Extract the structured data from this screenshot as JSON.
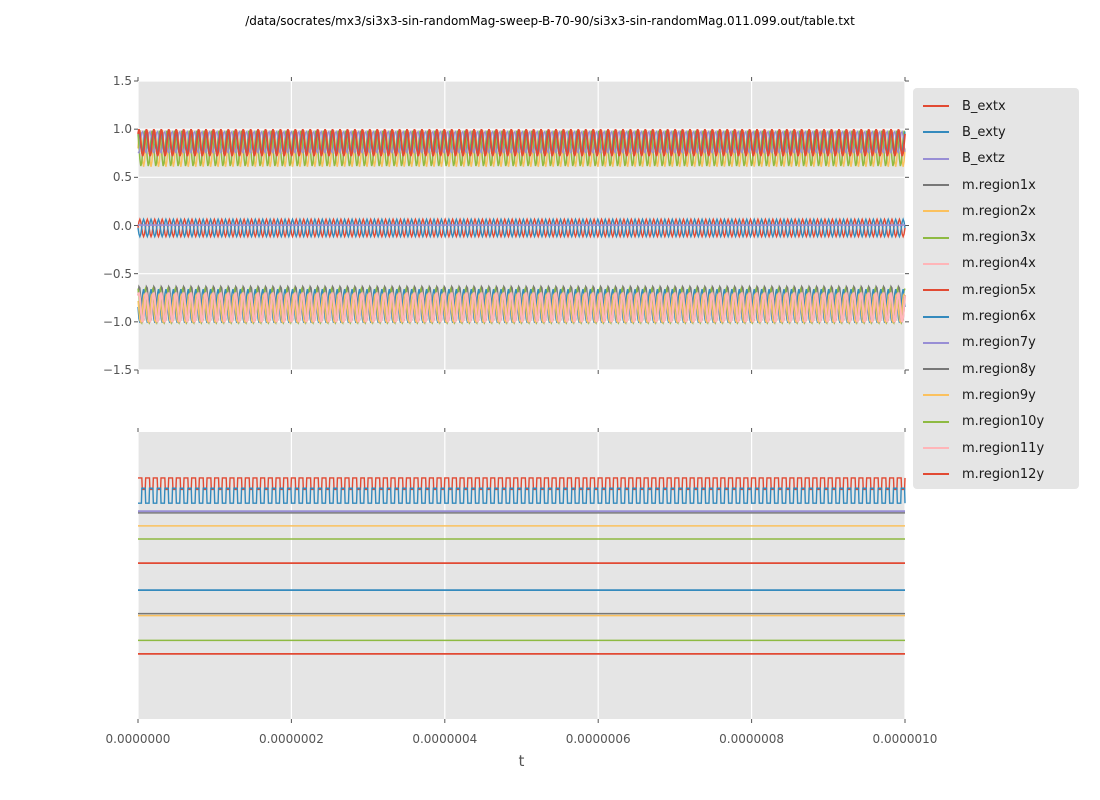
{
  "title": "/data/socrates/mx3/si3x3-sin-randomMag-sweep-B-70-90/si3x3-sin-randomMag.011.099.out/table.txt",
  "x_axis": {
    "label": "t",
    "tick_labels": [
      "0.0000000",
      "0.0000002",
      "0.0000004",
      "0.0000006",
      "0.0000008",
      "0.0000010"
    ]
  },
  "colors": {
    "figure_background": "#ffffff",
    "axes_background": "#E5E5E5",
    "grid": "#ffffff",
    "tick": "#555555",
    "tick_label_text": "#555555",
    "title_text": "#000000",
    "legend_background": "#E5E5E5",
    "palette": {
      "red": "#E24A33",
      "blue": "#348ABD",
      "purple": "#988ED5",
      "gray": "#777777",
      "yellow": "#FBC15E",
      "green": "#8EBA42",
      "pink": "#FFB5B8"
    }
  },
  "legend": {
    "entries": [
      {
        "label": "B_extx",
        "color_name": "red"
      },
      {
        "label": "B_exty",
        "color_name": "blue"
      },
      {
        "label": "B_extz",
        "color_name": "purple"
      },
      {
        "label": "m.region1x",
        "color_name": "gray"
      },
      {
        "label": "m.region2x",
        "color_name": "yellow"
      },
      {
        "label": "m.region3x",
        "color_name": "green"
      },
      {
        "label": "m.region4x",
        "color_name": "pink"
      },
      {
        "label": "m.region5x",
        "color_name": "red"
      },
      {
        "label": "m.region6x",
        "color_name": "blue"
      },
      {
        "label": "m.region7y",
        "color_name": "purple"
      },
      {
        "label": "m.region8y",
        "color_name": "gray"
      },
      {
        "label": "m.region9y",
        "color_name": "yellow"
      },
      {
        "label": "m.region10y",
        "color_name": "green"
      },
      {
        "label": "m.region11y",
        "color_name": "pink"
      },
      {
        "label": "m.region12y",
        "color_name": "red"
      }
    ]
  },
  "chart_data": [
    {
      "type": "line",
      "position": "top",
      "xlim": [
        0,
        1e-06
      ],
      "ylim": [
        -1.5,
        1.5
      ],
      "y_tick_labels": [
        "1.5",
        "1.0",
        "0.5",
        "0.0",
        "−0.5",
        "−1.0",
        "−1.5"
      ],
      "grid": "white on gray, horizontal and vertical",
      "oscillation_cycles": 103,
      "note": "Three bands of densely overlapping oscillating series; values are sine descriptors (center, amplitude in data units, phase rad) read from the pixels.",
      "series_components": [
        {
          "band": "upper",
          "color_name": "yellow",
          "center": 0.8,
          "amplitude": 0.19,
          "phase": 0.0,
          "lw": 1.5
        },
        {
          "band": "upper",
          "color_name": "green",
          "center": 0.8,
          "amplitude": 0.185,
          "phase": 2.2,
          "lw": 1.5
        },
        {
          "band": "upper",
          "color_name": "purple",
          "center": 0.865,
          "amplitude": 0.115,
          "phase": 4.2,
          "lw": 1.2
        },
        {
          "band": "upper",
          "color_name": "blue",
          "center": 0.865,
          "amplitude": 0.115,
          "phase": 1.3,
          "lw": 1.2
        },
        {
          "band": "lower",
          "color_name": "gray",
          "center": -0.815,
          "amplitude": 0.19,
          "phase": 0.5,
          "lw": 1.4
        },
        {
          "band": "lower",
          "color_name": "green",
          "center": -0.83,
          "amplitude": 0.18,
          "phase": 1.8,
          "lw": 1.4
        },
        {
          "band": "lower",
          "color_name": "blue",
          "center": -0.835,
          "amplitude": 0.175,
          "phase": 3.2,
          "lw": 1.4
        },
        {
          "band": "lower",
          "color_name": "yellow",
          "center": -0.86,
          "amplitude": 0.15,
          "phase": 2.6,
          "lw": 1.2
        },
        {
          "band": "middle",
          "color_name": "red",
          "center": -0.025,
          "amplitude": 0.09,
          "phase": 0.0,
          "lw": 1.4
        },
        {
          "band": "middle",
          "color_name": "blue",
          "center": -0.025,
          "amplitude": 0.09,
          "phase": 3.14,
          "lw": 1.4
        },
        {
          "band": "lower",
          "color_name": "pink",
          "center": -0.85,
          "amplitude": 0.155,
          "phase": 0.9,
          "lw": 2.2
        },
        {
          "band": "middle",
          "color_name": "purple",
          "center": 0.005,
          "amplitude": 0.0,
          "phase": 0.0,
          "lw": 1.6
        },
        {
          "band": "upper",
          "color_name": "red",
          "center": 0.86,
          "amplitude": 0.14,
          "phase": 0.7,
          "lw": 1.8
        }
      ]
    },
    {
      "type": "line",
      "position": "bottom",
      "xlim": [
        0,
        1e-06
      ],
      "y_axis": "no tick labels shown; levels given as fraction of plot height from top",
      "oscillation_cycles": 100,
      "series": [
        {
          "color_name": "red",
          "style": "square",
          "y_high_frac": 0.16,
          "y_low_frac": 0.2,
          "duty": 0.55,
          "phase_frac": 0.0,
          "lw": 1.4
        },
        {
          "color_name": "blue",
          "style": "square",
          "y_high_frac": 0.196,
          "y_low_frac": 0.248,
          "duty": 0.45,
          "phase_frac": 0.5,
          "lw": 1.4
        },
        {
          "color_name": "gray",
          "style": "flat",
          "y_frac": 0.282,
          "lw": 1.5
        },
        {
          "color_name": "purple",
          "style": "flat",
          "y_frac": 0.276,
          "lw": 1.8
        },
        {
          "color_name": "yellow",
          "style": "flat",
          "y_frac": 0.327,
          "lw": 1.5
        },
        {
          "color_name": "green",
          "style": "flat",
          "y_frac": 0.373,
          "lw": 1.5
        },
        {
          "color_name": "red",
          "style": "flat",
          "y_frac": 0.457,
          "lw": 1.8
        },
        {
          "color_name": "blue",
          "style": "flat",
          "y_frac": 0.551,
          "lw": 1.8
        },
        {
          "color_name": "yellow",
          "style": "flat",
          "y_frac": 0.64,
          "lw": 1.5
        },
        {
          "color_name": "gray",
          "style": "flat",
          "y_frac": 0.633,
          "lw": 1.5
        },
        {
          "color_name": "green",
          "style": "flat",
          "y_frac": 0.726,
          "lw": 1.5
        },
        {
          "color_name": "red",
          "style": "flat",
          "y_frac": 0.773,
          "lw": 1.8
        }
      ]
    }
  ]
}
